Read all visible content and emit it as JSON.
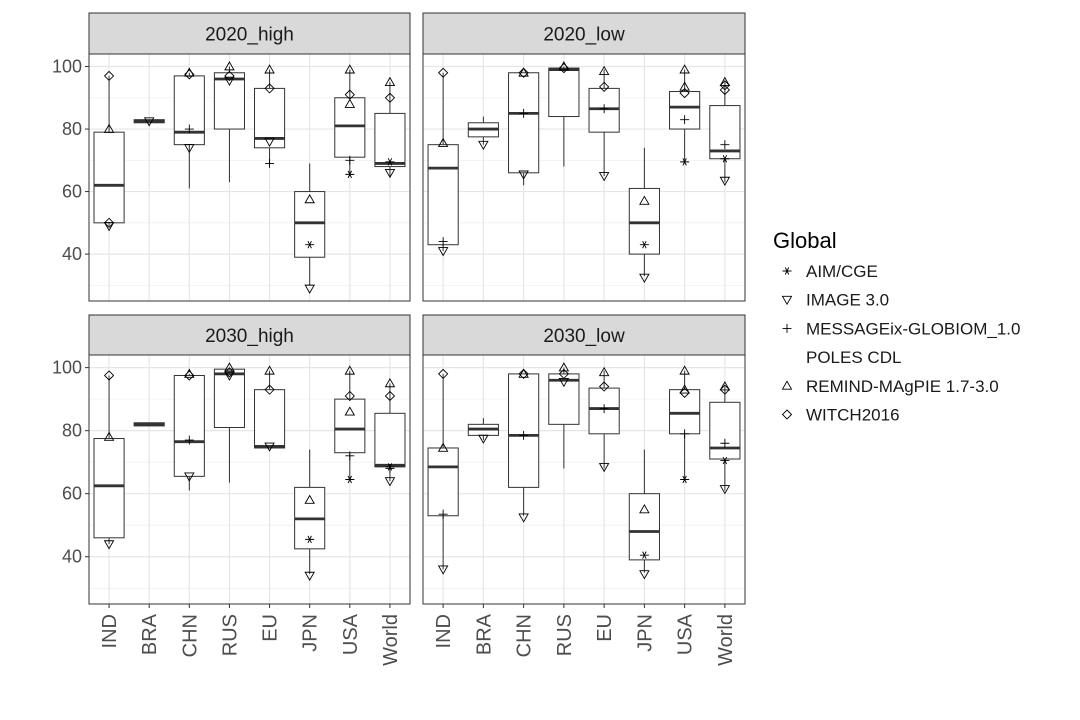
{
  "chart_data": {
    "type": "box",
    "categories": [
      "IND",
      "BRA",
      "CHN",
      "RUS",
      "EU",
      "JPN",
      "USA",
      "World"
    ],
    "ylim": [
      25,
      104
    ],
    "yticks": [
      40,
      60,
      80,
      100
    ],
    "grid": true,
    "legend": {
      "title": "Global",
      "position": "right",
      "entries": [
        {
          "name": "AIM/CGE",
          "shape": "asterisk"
        },
        {
          "name": "IMAGE 3.0",
          "shape": "triangle-down"
        },
        {
          "name": "MESSAGEix-GLOBIOM_1.0",
          "shape": "plus"
        },
        {
          "name": "POLES CDL",
          "shape": "none"
        },
        {
          "name": "REMIND-MAgPIE 1.7-3.0",
          "shape": "triangle-up"
        },
        {
          "name": "WITCH2016",
          "shape": "diamond"
        }
      ]
    },
    "panels": [
      {
        "title": "2020_high",
        "boxes": [
          {
            "cat": "IND",
            "low": 49,
            "q1": 50,
            "median": 62,
            "q3": 79,
            "high": 97
          },
          {
            "cat": "BRA",
            "low": 82,
            "q1": 82,
            "median": 82.5,
            "q3": 83,
            "high": 83
          },
          {
            "cat": "CHN",
            "low": 61,
            "q1": 75,
            "median": 79,
            "q3": 97,
            "high": 98
          },
          {
            "cat": "RUS",
            "low": 63,
            "q1": 80,
            "median": 96,
            "q3": 98,
            "high": 100
          },
          {
            "cat": "EU",
            "low": 69,
            "q1": 74,
            "median": 77,
            "q3": 93,
            "high": 99
          },
          {
            "cat": "JPN",
            "low": 30,
            "q1": 39,
            "median": 50,
            "q3": 60,
            "high": 69
          },
          {
            "cat": "USA",
            "low": 65,
            "q1": 71,
            "median": 81,
            "q3": 90,
            "high": 99
          },
          {
            "cat": "World",
            "low": 65,
            "q1": 68,
            "median": 69,
            "q3": 85,
            "high": 95
          }
        ],
        "points": [
          {
            "cat": "IND",
            "model": "WITCH2016",
            "value": 97
          },
          {
            "cat": "IND",
            "model": "REMIND-MAgPIE 1.7-3.0",
            "value": 80
          },
          {
            "cat": "IND",
            "model": "IMAGE 3.0",
            "value": 49
          },
          {
            "cat": "IND",
            "model": "WITCH2016",
            "value": 50
          },
          {
            "cat": "BRA",
            "model": "IMAGE 3.0",
            "value": 82.5
          },
          {
            "cat": "CHN",
            "model": "REMIND-MAgPIE 1.7-3.0",
            "value": 98
          },
          {
            "cat": "CHN",
            "model": "WITCH2016",
            "value": 97.5
          },
          {
            "cat": "CHN",
            "model": "MESSAGEix-GLOBIOM_1.0",
            "value": 80
          },
          {
            "cat": "CHN",
            "model": "IMAGE 3.0",
            "value": 74
          },
          {
            "cat": "RUS",
            "model": "REMIND-MAgPIE 1.7-3.0",
            "value": 100
          },
          {
            "cat": "RUS",
            "model": "WITCH2016",
            "value": 97
          },
          {
            "cat": "RUS",
            "model": "IMAGE 3.0",
            "value": 95.5
          },
          {
            "cat": "EU",
            "model": "REMIND-MAgPIE 1.7-3.0",
            "value": 99
          },
          {
            "cat": "EU",
            "model": "WITCH2016",
            "value": 93
          },
          {
            "cat": "EU",
            "model": "IMAGE 3.0",
            "value": 76
          },
          {
            "cat": "EU",
            "model": "MESSAGEix-GLOBIOM_1.0",
            "value": 69
          },
          {
            "cat": "JPN",
            "model": "REMIND-MAgPIE 1.7-3.0",
            "value": 57.5
          },
          {
            "cat": "JPN",
            "model": "AIM/CGE",
            "value": 43
          },
          {
            "cat": "JPN",
            "model": "IMAGE 3.0",
            "value": 29
          },
          {
            "cat": "USA",
            "model": "REMIND-MAgPIE 1.7-3.0",
            "value": 99
          },
          {
            "cat": "USA",
            "model": "WITCH2016",
            "value": 91
          },
          {
            "cat": "USA",
            "model": "REMIND-MAgPIE 1.7-3.0",
            "value": 88
          },
          {
            "cat": "USA",
            "model": "MESSAGEix-GLOBIOM_1.0",
            "value": 70
          },
          {
            "cat": "USA",
            "model": "AIM/CGE",
            "value": 65.5
          },
          {
            "cat": "World",
            "model": "REMIND-MAgPIE 1.7-3.0",
            "value": 95
          },
          {
            "cat": "World",
            "model": "WITCH2016",
            "value": 90
          },
          {
            "cat": "World",
            "model": "AIM/CGE",
            "value": 69.5
          },
          {
            "cat": "World",
            "model": "IMAGE 3.0",
            "value": 66
          }
        ]
      },
      {
        "title": "2020_low",
        "boxes": [
          {
            "cat": "IND",
            "low": 41,
            "q1": 43,
            "median": 67.5,
            "q3": 75,
            "high": 98
          },
          {
            "cat": "BRA",
            "low": 75,
            "q1": 77.5,
            "median": 80,
            "q3": 82,
            "high": 84
          },
          {
            "cat": "CHN",
            "low": 62,
            "q1": 66,
            "median": 85,
            "q3": 98,
            "high": 98
          },
          {
            "cat": "RUS",
            "low": 68,
            "q1": 84,
            "median": 99,
            "q3": 99.5,
            "high": 100
          },
          {
            "cat": "EU",
            "low": 65,
            "q1": 79,
            "median": 86.5,
            "q3": 93,
            "high": 99
          },
          {
            "cat": "JPN",
            "low": 33,
            "q1": 40,
            "median": 50,
            "q3": 61,
            "high": 74
          },
          {
            "cat": "USA",
            "low": 69,
            "q1": 80,
            "median": 87,
            "q3": 92,
            "high": 99
          },
          {
            "cat": "World",
            "low": 63,
            "q1": 70.5,
            "median": 73,
            "q3": 87.5,
            "high": 95
          }
        ],
        "points": [
          {
            "cat": "IND",
            "model": "WITCH2016",
            "value": 98
          },
          {
            "cat": "IND",
            "model": "REMIND-MAgPIE 1.7-3.0",
            "value": 75.5
          },
          {
            "cat": "IND",
            "model": "MESSAGEix-GLOBIOM_1.0",
            "value": 44
          },
          {
            "cat": "IND",
            "model": "IMAGE 3.0",
            "value": 41
          },
          {
            "cat": "BRA",
            "model": "IMAGE 3.0",
            "value": 75
          },
          {
            "cat": "CHN",
            "model": "REMIND-MAgPIE 1.7-3.0",
            "value": 98
          },
          {
            "cat": "CHN",
            "model": "WITCH2016",
            "value": 98
          },
          {
            "cat": "CHN",
            "model": "MESSAGEix-GLOBIOM_1.0",
            "value": 85
          },
          {
            "cat": "CHN",
            "model": "IMAGE 3.0",
            "value": 65.5
          },
          {
            "cat": "RUS",
            "model": "REMIND-MAgPIE 1.7-3.0",
            "value": 100
          },
          {
            "cat": "RUS",
            "model": "WITCH2016",
            "value": 99.5
          },
          {
            "cat": "EU",
            "model": "REMIND-MAgPIE 1.7-3.0",
            "value": 98.5
          },
          {
            "cat": "EU",
            "model": "WITCH2016",
            "value": 93.5
          },
          {
            "cat": "EU",
            "model": "MESSAGEix-GLOBIOM_1.0",
            "value": 86.5
          },
          {
            "cat": "EU",
            "model": "IMAGE 3.0",
            "value": 65
          },
          {
            "cat": "JPN",
            "model": "REMIND-MAgPIE 1.7-3.0",
            "value": 57
          },
          {
            "cat": "JPN",
            "model": "AIM/CGE",
            "value": 43
          },
          {
            "cat": "JPN",
            "model": "IMAGE 3.0",
            "value": 32.5
          },
          {
            "cat": "USA",
            "model": "REMIND-MAgPIE 1.7-3.0",
            "value": 99
          },
          {
            "cat": "USA",
            "model": "REMIND-MAgPIE 1.7-3.0",
            "value": 93.5
          },
          {
            "cat": "USA",
            "model": "WITCH2016",
            "value": 91.5
          },
          {
            "cat": "USA",
            "model": "MESSAGEix-GLOBIOM_1.0",
            "value": 83
          },
          {
            "cat": "USA",
            "model": "AIM/CGE",
            "value": 69.5
          },
          {
            "cat": "World",
            "model": "REMIND-MAgPIE 1.7-3.0",
            "value": 95
          },
          {
            "cat": "World",
            "model": "WITCH2016",
            "value": 94
          },
          {
            "cat": "World",
            "model": "WITCH2016",
            "value": 92.5
          },
          {
            "cat": "World",
            "model": "MESSAGEix-GLOBIOM_1.0",
            "value": 75
          },
          {
            "cat": "World",
            "model": "AIM/CGE",
            "value": 70.5
          },
          {
            "cat": "World",
            "model": "IMAGE 3.0",
            "value": 63.5
          }
        ]
      },
      {
        "title": "2030_high",
        "boxes": [
          {
            "cat": "IND",
            "low": 44,
            "q1": 46,
            "median": 62.5,
            "q3": 77.5,
            "high": 97.5
          },
          {
            "cat": "BRA",
            "low": 81.5,
            "q1": 81.5,
            "median": 82,
            "q3": 82.5,
            "high": 82.5
          },
          {
            "cat": "CHN",
            "low": 61,
            "q1": 65.5,
            "median": 76.5,
            "q3": 97.5,
            "high": 98
          },
          {
            "cat": "RUS",
            "low": 63.5,
            "q1": 81,
            "median": 98,
            "q3": 99.5,
            "high": 100
          },
          {
            "cat": "EU",
            "low": 74.5,
            "q1": 74.5,
            "median": 75,
            "q3": 93,
            "high": 99
          },
          {
            "cat": "JPN",
            "low": 34.5,
            "q1": 42.5,
            "median": 52,
            "q3": 62,
            "high": 74
          },
          {
            "cat": "USA",
            "low": 64.5,
            "q1": 73,
            "median": 80.5,
            "q3": 90,
            "high": 99
          },
          {
            "cat": "World",
            "low": 64,
            "q1": 68.5,
            "median": 69,
            "q3": 85.5,
            "high": 95
          }
        ],
        "points": [
          {
            "cat": "IND",
            "model": "WITCH2016",
            "value": 97.5
          },
          {
            "cat": "IND",
            "model": "REMIND-MAgPIE 1.7-3.0",
            "value": 78
          },
          {
            "cat": "IND",
            "model": "IMAGE 3.0",
            "value": 44
          },
          {
            "cat": "CHN",
            "model": "REMIND-MAgPIE 1.7-3.0",
            "value": 98
          },
          {
            "cat": "CHN",
            "model": "WITCH2016",
            "value": 97.5
          },
          {
            "cat": "CHN",
            "model": "MESSAGEix-GLOBIOM_1.0",
            "value": 77
          },
          {
            "cat": "CHN",
            "model": "IMAGE 3.0",
            "value": 65.5
          },
          {
            "cat": "RUS",
            "model": "REMIND-MAgPIE 1.7-3.0",
            "value": 100
          },
          {
            "cat": "RUS",
            "model": "WITCH2016",
            "value": 98.5
          },
          {
            "cat": "RUS",
            "model": "IMAGE 3.0",
            "value": 97.5
          },
          {
            "cat": "EU",
            "model": "REMIND-MAgPIE 1.7-3.0",
            "value": 99
          },
          {
            "cat": "EU",
            "model": "WITCH2016",
            "value": 93
          },
          {
            "cat": "EU",
            "model": "IMAGE 3.0",
            "value": 75
          },
          {
            "cat": "JPN",
            "model": "REMIND-MAgPIE 1.7-3.0",
            "value": 58
          },
          {
            "cat": "JPN",
            "model": "AIM/CGE",
            "value": 45.5
          },
          {
            "cat": "JPN",
            "model": "IMAGE 3.0",
            "value": 34
          },
          {
            "cat": "USA",
            "model": "REMIND-MAgPIE 1.7-3.0",
            "value": 99
          },
          {
            "cat": "USA",
            "model": "WITCH2016",
            "value": 91
          },
          {
            "cat": "USA",
            "model": "REMIND-MAgPIE 1.7-3.0",
            "value": 86
          },
          {
            "cat": "USA",
            "model": "MESSAGEix-GLOBIOM_1.0",
            "value": 72
          },
          {
            "cat": "USA",
            "model": "AIM/CGE",
            "value": 64.5
          },
          {
            "cat": "World",
            "model": "REMIND-MAgPIE 1.7-3.0",
            "value": 95
          },
          {
            "cat": "World",
            "model": "WITCH2016",
            "value": 91
          },
          {
            "cat": "World",
            "model": "AIM/CGE",
            "value": 68.5
          },
          {
            "cat": "World",
            "model": "MESSAGEix-GLOBIOM_1.0",
            "value": 68
          },
          {
            "cat": "World",
            "model": "IMAGE 3.0",
            "value": 64
          }
        ]
      },
      {
        "title": "2030_low",
        "boxes": [
          {
            "cat": "IND",
            "low": 36,
            "q1": 53,
            "median": 68.5,
            "q3": 74.5,
            "high": 98
          },
          {
            "cat": "BRA",
            "low": 77,
            "q1": 78.5,
            "median": 80.5,
            "q3": 82,
            "high": 84
          },
          {
            "cat": "CHN",
            "low": 53,
            "q1": 62,
            "median": 78.5,
            "q3": 98,
            "high": 98
          },
          {
            "cat": "RUS",
            "low": 68,
            "q1": 82,
            "median": 96,
            "q3": 98,
            "high": 100
          },
          {
            "cat": "EU",
            "low": 68,
            "q1": 79,
            "median": 87,
            "q3": 93.5,
            "high": 99
          },
          {
            "cat": "JPN",
            "low": 35,
            "q1": 39,
            "median": 48,
            "q3": 60,
            "high": 74
          },
          {
            "cat": "USA",
            "low": 64.5,
            "q1": 79,
            "median": 85.5,
            "q3": 93,
            "high": 99
          },
          {
            "cat": "World",
            "low": 61,
            "q1": 71,
            "median": 74.5,
            "q3": 89,
            "high": 94
          }
        ],
        "points": [
          {
            "cat": "IND",
            "model": "WITCH2016",
            "value": 98
          },
          {
            "cat": "IND",
            "model": "REMIND-MAgPIE 1.7-3.0",
            "value": 74.5
          },
          {
            "cat": "IND",
            "model": "MESSAGEix-GLOBIOM_1.0",
            "value": 53.5
          },
          {
            "cat": "IND",
            "model": "IMAGE 3.0",
            "value": 36
          },
          {
            "cat": "BRA",
            "model": "IMAGE 3.0",
            "value": 77.5
          },
          {
            "cat": "CHN",
            "model": "REMIND-MAgPIE 1.7-3.0",
            "value": 98
          },
          {
            "cat": "CHN",
            "model": "WITCH2016",
            "value": 98
          },
          {
            "cat": "CHN",
            "model": "MESSAGEix-GLOBIOM_1.0",
            "value": 78.5
          },
          {
            "cat": "CHN",
            "model": "IMAGE 3.0",
            "value": 52.5
          },
          {
            "cat": "RUS",
            "model": "REMIND-MAgPIE 1.7-3.0",
            "value": 100
          },
          {
            "cat": "RUS",
            "model": "WITCH2016",
            "value": 98
          },
          {
            "cat": "RUS",
            "model": "IMAGE 3.0",
            "value": 95.5
          },
          {
            "cat": "EU",
            "model": "REMIND-MAgPIE 1.7-3.0",
            "value": 98.5
          },
          {
            "cat": "EU",
            "model": "WITCH2016",
            "value": 94
          },
          {
            "cat": "EU",
            "model": "MESSAGEix-GLOBIOM_1.0",
            "value": 87
          },
          {
            "cat": "EU",
            "model": "IMAGE 3.0",
            "value": 68.5
          },
          {
            "cat": "JPN",
            "model": "REMIND-MAgPIE 1.7-3.0",
            "value": 55
          },
          {
            "cat": "JPN",
            "model": "AIM/CGE",
            "value": 40.5
          },
          {
            "cat": "JPN",
            "model": "IMAGE 3.0",
            "value": 34.5
          },
          {
            "cat": "USA",
            "model": "REMIND-MAgPIE 1.7-3.0",
            "value": 99
          },
          {
            "cat": "USA",
            "model": "REMIND-MAgPIE 1.7-3.0",
            "value": 93
          },
          {
            "cat": "USA",
            "model": "WITCH2016",
            "value": 92
          },
          {
            "cat": "USA",
            "model": "MESSAGEix-GLOBIOM_1.0",
            "value": 79
          },
          {
            "cat": "USA",
            "model": "AIM/CGE",
            "value": 64.5
          },
          {
            "cat": "World",
            "model": "REMIND-MAgPIE 1.7-3.0",
            "value": 94
          },
          {
            "cat": "World",
            "model": "WITCH2016",
            "value": 93
          },
          {
            "cat": "World",
            "model": "MESSAGEix-GLOBIOM_1.0",
            "value": 76
          },
          {
            "cat": "World",
            "model": "AIM/CGE",
            "value": 70.5
          },
          {
            "cat": "World",
            "model": "IMAGE 3.0",
            "value": 61.5
          }
        ]
      }
    ]
  }
}
